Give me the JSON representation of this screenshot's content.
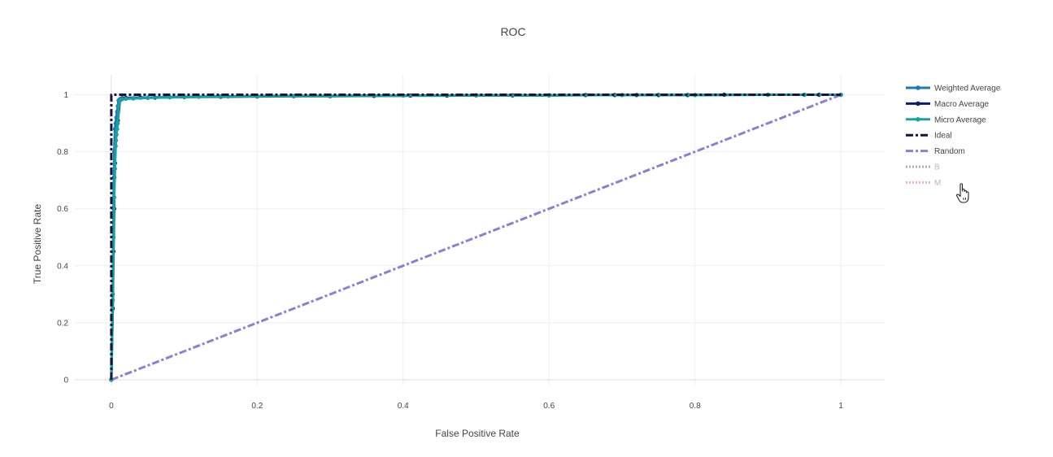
{
  "chart_data": {
    "type": "line",
    "title": "ROC",
    "xlabel": "False Positive Rate",
    "ylabel": "True Positive Rate",
    "xlim": [
      -0.05,
      1.06
    ],
    "ylim": [
      -0.02,
      1.07
    ],
    "x_ticks": [
      0,
      0.2,
      0.4,
      0.6,
      0.8,
      1
    ],
    "x_tick_labels": [
      "0",
      "0.2",
      "0.4",
      "0.6",
      "0.8",
      "1"
    ],
    "y_ticks": [
      0,
      0.2,
      0.4,
      0.6,
      0.8,
      1
    ],
    "y_tick_labels": [
      "0",
      "0.2",
      "0.4",
      "0.6",
      "0.8",
      "1"
    ],
    "grid": true,
    "legend_position": "right",
    "series": [
      {
        "name": "Weighted Average",
        "color": "#1f77b4",
        "dash": "solid",
        "markers": true,
        "visible": true,
        "x": [
          0,
          0.002,
          0.003,
          0.004,
          0.005,
          0.006,
          0.007,
          0.008,
          0.009,
          0.01,
          0.012,
          0.015,
          0.02,
          0.03,
          0.05,
          0.08,
          0.1,
          0.15,
          0.2,
          0.3,
          0.4,
          0.5,
          0.6,
          0.7,
          0.8,
          0.9,
          0.95,
          1
        ],
        "y": [
          0,
          0.3,
          0.6,
          0.8,
          0.88,
          0.9,
          0.92,
          0.94,
          0.96,
          0.98,
          0.985,
          0.985,
          0.987,
          0.988,
          0.99,
          0.992,
          0.993,
          0.994,
          0.995,
          0.996,
          0.997,
          0.998,
          0.998,
          0.999,
          0.999,
          1,
          1,
          1
        ]
      },
      {
        "name": "Macro Average",
        "color": "#0c1f6e",
        "dash": "solid",
        "markers": true,
        "visible": true,
        "x": [
          0,
          0.002,
          0.003,
          0.004,
          0.004,
          0.005,
          0.006,
          0.007,
          0.008,
          0.009,
          0.012,
          0.015,
          0.02,
          0.04,
          0.06,
          0.1,
          0.15,
          0.2,
          0.25,
          0.3,
          0.36,
          0.41,
          0.46,
          0.5,
          0.55,
          0.6,
          0.65,
          0.69,
          0.72,
          0.75,
          0.79,
          0.84,
          0.9,
          0.95,
          0.97,
          1
        ],
        "y": [
          0,
          0.25,
          0.45,
          0.6,
          0.71,
          0.76,
          0.84,
          0.88,
          0.9,
          0.91,
          0.985,
          0.988,
          0.989,
          0.99,
          0.99,
          0.992,
          0.993,
          0.994,
          0.995,
          0.995,
          0.996,
          0.997,
          0.997,
          0.998,
          0.998,
          0.998,
          0.999,
          0.999,
          0.999,
          0.999,
          0.999,
          1,
          1,
          1,
          1,
          1
        ]
      },
      {
        "name": "Micro Average",
        "color": "#17a2a2",
        "dash": "solid",
        "markers": true,
        "visible": true,
        "x": [
          0,
          0.002,
          0.003,
          0.004,
          0.005,
          0.006,
          0.007,
          0.008,
          0.009,
          0.01,
          0.012,
          0.015,
          0.02,
          0.03,
          0.05,
          0.08,
          0.12,
          0.16,
          0.2,
          0.25,
          0.3,
          0.4,
          0.5,
          0.6,
          0.7,
          0.8,
          0.9,
          0.95,
          1
        ],
        "y": [
          0,
          0.28,
          0.5,
          0.64,
          0.74,
          0.82,
          0.86,
          0.88,
          0.9,
          0.96,
          0.98,
          0.985,
          0.986,
          0.987,
          0.989,
          0.991,
          0.993,
          0.994,
          0.995,
          0.996,
          0.996,
          0.997,
          0.998,
          0.998,
          0.999,
          0.999,
          1,
          1,
          1
        ]
      },
      {
        "name": "Ideal",
        "color": "#14143c",
        "dash": "dashdot",
        "markers": false,
        "visible": true,
        "x": [
          0,
          0,
          1
        ],
        "y": [
          0,
          1,
          1
        ]
      },
      {
        "name": "Random",
        "color": "#8b7fd1",
        "dash": "dashdot",
        "markers": false,
        "visible": true,
        "x": [
          0,
          1
        ],
        "y": [
          0,
          1
        ]
      },
      {
        "name": "B",
        "color": "#8c6d8c",
        "dash": "dot",
        "markers": false,
        "visible": false,
        "x": [],
        "y": []
      },
      {
        "name": "M",
        "color": "#e377c2",
        "dash": "dot",
        "markers": false,
        "visible": false,
        "x": [],
        "y": []
      }
    ]
  }
}
